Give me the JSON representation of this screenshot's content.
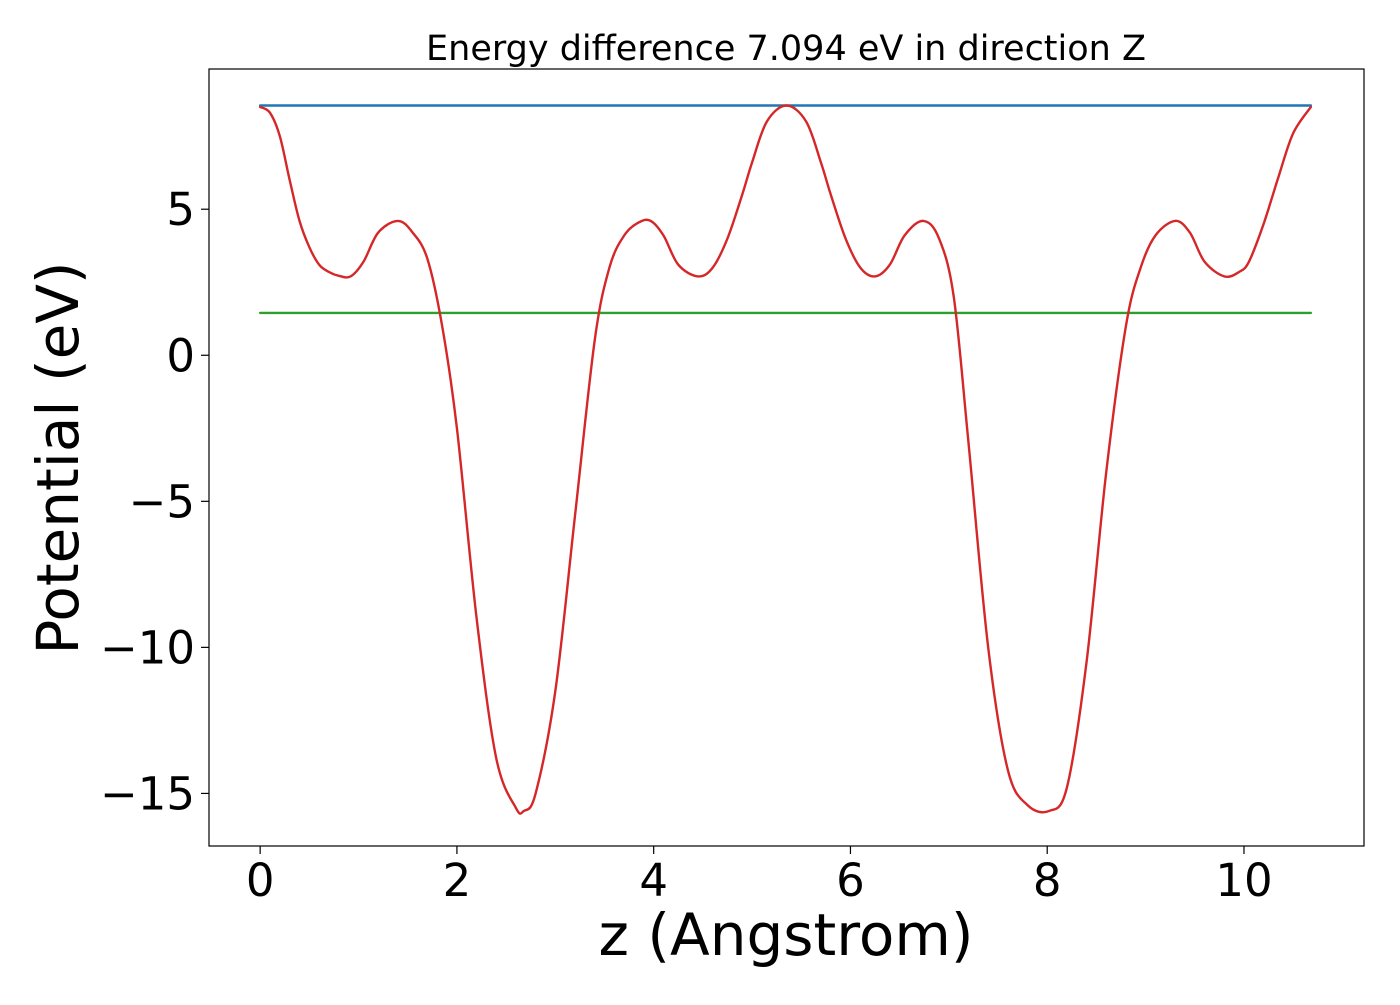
{
  "chart_data": {
    "type": "line",
    "title": "Energy difference 7.094 eV in direction Z",
    "xlabel": "z (Angstrom)",
    "ylabel": "Potential (eV)",
    "xlim": [
      -0.52,
      11.22
    ],
    "ylim": [
      -16.8,
      9.8
    ],
    "grid": false,
    "legend": "none",
    "x_ticks": [
      {
        "value": 0,
        "label": "0"
      },
      {
        "value": 2,
        "label": "2"
      },
      {
        "value": 4,
        "label": "4"
      },
      {
        "value": 6,
        "label": "6"
      },
      {
        "value": 8,
        "label": "8"
      },
      {
        "value": 10,
        "label": "10"
      }
    ],
    "y_ticks": [
      {
        "value": 5,
        "label": "5"
      },
      {
        "value": 0,
        "label": "0"
      },
      {
        "value": -5,
        "label": "−5"
      },
      {
        "value": -10,
        "label": "−10"
      },
      {
        "value": -15,
        "label": "−15"
      }
    ],
    "series": [
      {
        "color": "#d62728",
        "x": [
          0.0,
          0.1,
          0.2,
          0.3,
          0.4,
          0.5,
          0.6,
          0.7,
          0.8,
          0.92,
          1.05,
          1.2,
          1.4,
          1.55,
          1.7,
          1.85,
          2.0,
          2.2,
          2.4,
          2.6,
          2.68,
          2.8,
          3.0,
          3.2,
          3.4,
          3.55,
          3.7,
          3.85,
          3.97,
          4.1,
          4.25,
          4.45,
          4.6,
          4.75,
          4.9,
          5.0,
          5.15,
          5.35,
          5.55,
          5.7,
          5.8,
          5.95,
          6.1,
          6.25,
          6.4,
          6.55,
          6.74,
          6.9,
          7.05,
          7.2,
          7.4,
          7.6,
          7.8,
          8.02,
          8.2,
          8.4,
          8.6,
          8.8,
          8.95,
          9.1,
          9.3,
          9.45,
          9.6,
          9.8,
          9.95,
          10.05,
          10.2,
          10.35,
          10.5,
          10.68
        ],
        "y": [
          8.5,
          8.3,
          7.5,
          6.0,
          4.6,
          3.7,
          3.1,
          2.85,
          2.72,
          2.7,
          3.2,
          4.2,
          4.6,
          4.2,
          3.3,
          1.0,
          -2.5,
          -9.0,
          -13.8,
          -15.5,
          -15.6,
          -15.0,
          -11.5,
          -5.5,
          0.5,
          3.0,
          4.1,
          4.55,
          4.6,
          4.1,
          3.1,
          2.7,
          3.0,
          4.0,
          5.5,
          6.6,
          8.0,
          8.55,
          8.0,
          6.6,
          5.5,
          4.0,
          3.0,
          2.7,
          3.1,
          4.1,
          4.6,
          4.0,
          2.0,
          -3.0,
          -10.0,
          -14.2,
          -15.4,
          -15.6,
          -14.8,
          -10.5,
          -4.0,
          1.0,
          3.0,
          4.1,
          4.6,
          4.2,
          3.2,
          2.7,
          2.85,
          3.2,
          4.5,
          6.1,
          7.6,
          8.5
        ]
      },
      {
        "color": "#1f77b4",
        "x": [
          0.0,
          10.68
        ],
        "y": [
          8.55,
          8.55
        ]
      },
      {
        "color": "#2ca02c",
        "x": [
          0.0,
          10.68
        ],
        "y": [
          1.45,
          1.45
        ]
      }
    ]
  }
}
